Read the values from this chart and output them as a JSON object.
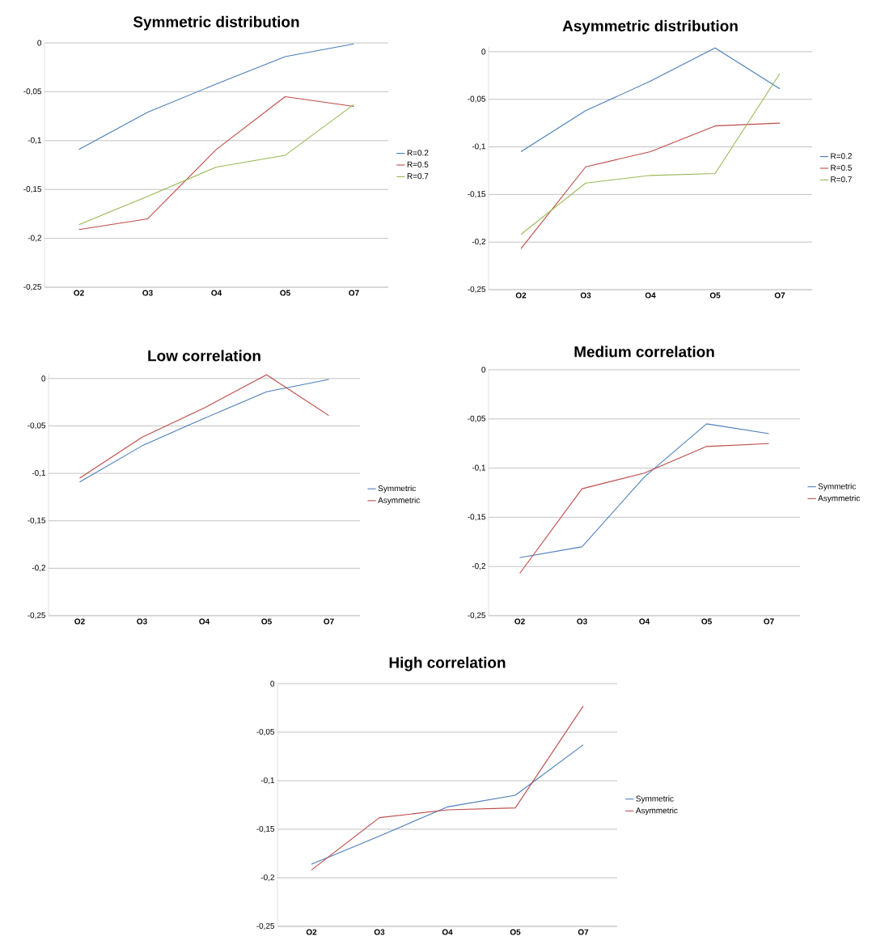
{
  "chart_data": [
    {
      "type": "line",
      "title": "Symmetric distribution",
      "categories": [
        "O2",
        "O3",
        "O4",
        "O5",
        "O7"
      ],
      "series": [
        {
          "name": "R=0.2",
          "color": "#4a7ebb",
          "values": [
            -0.109,
            -0.071,
            -0.042,
            -0.014,
            -0.001
          ]
        },
        {
          "name": "R=0.5",
          "color": "#be4b48",
          "values": [
            -0.191,
            -0.18,
            -0.109,
            -0.055,
            -0.065
          ]
        },
        {
          "name": "R=0.7",
          "color": "#98b954",
          "values": [
            -0.186,
            -0.157,
            -0.127,
            -0.115,
            -0.063
          ]
        }
      ],
      "ylim": [
        -0.25,
        0
      ],
      "yticks": [
        0,
        {
          "value": -0.05,
          "label": "-0,05"
        },
        {
          "value": -0.1,
          "label": "-0,1"
        },
        {
          "value": -0.15,
          "label": "-0,15"
        },
        {
          "value": -0.2,
          "label": "-0,2"
        },
        {
          "value": -0.25,
          "label": "-0,25"
        }
      ],
      "grid": "y",
      "legend": "right"
    },
    {
      "type": "line",
      "title": "Asymmetric distribution",
      "categories": [
        "O2",
        "O3",
        "O4",
        "O5",
        "O7"
      ],
      "series": [
        {
          "name": "R=0.2",
          "color": "#4a7ebb",
          "values": [
            -0.105,
            -0.062,
            -0.031,
            0.004,
            -0.039
          ]
        },
        {
          "name": "R=0.5",
          "color": "#be4b48",
          "values": [
            -0.207,
            -0.121,
            -0.105,
            -0.078,
            -0.075
          ]
        },
        {
          "name": "R=0.7",
          "color": "#98b954",
          "values": [
            -0.192,
            -0.138,
            -0.13,
            -0.128,
            -0.023
          ]
        }
      ],
      "ylim": [
        -0.25,
        0.005
      ],
      "yticks": [
        0,
        {
          "value": -0.05,
          "label": "-0,05"
        },
        {
          "value": -0.1,
          "label": "-0,1"
        },
        {
          "value": -0.15,
          "label": "-0,15"
        },
        {
          "value": -0.2,
          "label": "-0,2"
        },
        {
          "value": -0.25,
          "label": "-0,25"
        }
      ],
      "grid": "y",
      "legend": "right"
    },
    {
      "type": "line",
      "title": "Low correlation",
      "categories": [
        "O2",
        "O3",
        "O4",
        "O5",
        "O7"
      ],
      "series": [
        {
          "name": "Symmetric",
          "color": "#4a7ebb",
          "values": [
            -0.109,
            -0.071,
            -0.042,
            -0.014,
            -0.001
          ]
        },
        {
          "name": "Asymmetric",
          "color": "#be4b48",
          "values": [
            -0.105,
            -0.062,
            -0.031,
            0.004,
            -0.039
          ]
        }
      ],
      "ylim": [
        -0.25,
        0.005
      ],
      "yticks": [
        0,
        {
          "value": -0.05,
          "label": "-0,05"
        },
        {
          "value": -0.1,
          "label": "-0,1"
        },
        {
          "value": -0.15,
          "label": "-0,15"
        },
        {
          "value": -0.2,
          "label": "-0,2"
        },
        {
          "value": -0.25,
          "label": "-0,25"
        }
      ],
      "grid": "y",
      "legend": "right"
    },
    {
      "type": "line",
      "title": "Medium correlation",
      "categories": [
        "O2",
        "O3",
        "O4",
        "O5",
        "O7"
      ],
      "series": [
        {
          "name": "Symmetric",
          "color": "#4a7ebb",
          "values": [
            -0.191,
            -0.18,
            -0.109,
            -0.055,
            -0.065
          ]
        },
        {
          "name": "Asymmetric",
          "color": "#be4b48",
          "values": [
            -0.207,
            -0.121,
            -0.105,
            -0.078,
            -0.075
          ]
        }
      ],
      "ylim": [
        -0.25,
        0
      ],
      "yticks": [
        0,
        {
          "value": -0.05,
          "label": "-0,05"
        },
        {
          "value": -0.1,
          "label": "-0,1"
        },
        {
          "value": -0.15,
          "label": "-0,15"
        },
        {
          "value": -0.2,
          "label": "-0,2"
        },
        {
          "value": -0.25,
          "label": "-0,25"
        }
      ],
      "grid": "y",
      "legend": "right"
    },
    {
      "type": "line",
      "title": "High correlation",
      "categories": [
        "O2",
        "O3",
        "O4",
        "O5",
        "O7"
      ],
      "series": [
        {
          "name": "Symmetric",
          "color": "#4a7ebb",
          "values": [
            -0.186,
            -0.157,
            -0.127,
            -0.115,
            -0.063
          ]
        },
        {
          "name": "Asymmetric",
          "color": "#be4b48",
          "values": [
            -0.192,
            -0.138,
            -0.13,
            -0.128,
            -0.023
          ]
        }
      ],
      "ylim": [
        -0.25,
        0
      ],
      "yticks": [
        0,
        {
          "value": -0.05,
          "label": "-0,05"
        },
        {
          "value": -0.1,
          "label": "-0,1"
        },
        {
          "value": -0.15,
          "label": "-0,15"
        },
        {
          "value": -0.2,
          "label": "-0,2"
        },
        {
          "value": -0.25,
          "label": "-0,25"
        }
      ],
      "grid": "y",
      "legend": "right"
    }
  ]
}
